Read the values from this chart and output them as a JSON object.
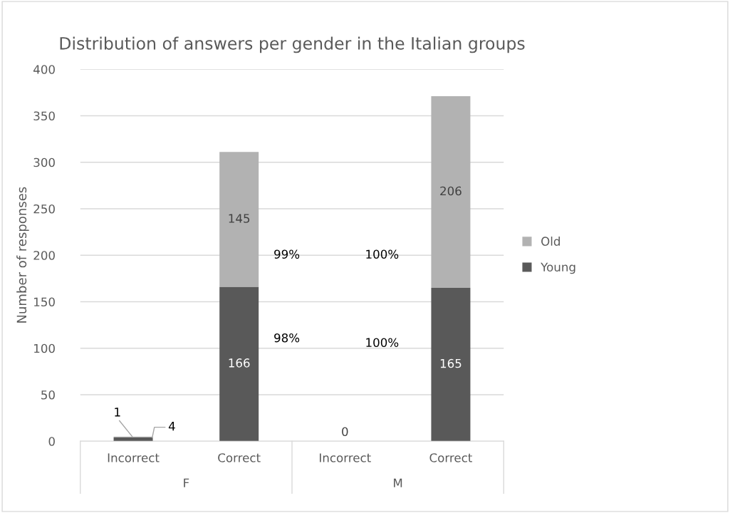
{
  "chart_data": {
    "type": "bar",
    "title": "Distribution of answers per gender in the Italian groups",
    "ylabel": "Number of responses",
    "categories": [
      "Incorrect",
      "Correct",
      "Incorrect",
      "Correct"
    ],
    "series": [
      {
        "name": "Young",
        "color": "#595959",
        "values": [
          4,
          166,
          0,
          165
        ],
        "value_labels": [
          "4",
          "166",
          "0",
          "165"
        ]
      },
      {
        "name": "Old",
        "color": "#b2b2b2",
        "values": [
          1,
          145,
          0,
          206
        ],
        "value_labels": [
          "1",
          "145",
          null,
          "206"
        ]
      }
    ],
    "stacked": true,
    "ylim": [
      0,
      400
    ],
    "yticks": [
      0,
      50,
      100,
      150,
      200,
      250,
      300,
      350,
      400
    ],
    "grid": "y",
    "legend": "right",
    "annotations": [
      "F",
      "M",
      "98%",
      "99%",
      "100%",
      "100%"
    ]
  }
}
